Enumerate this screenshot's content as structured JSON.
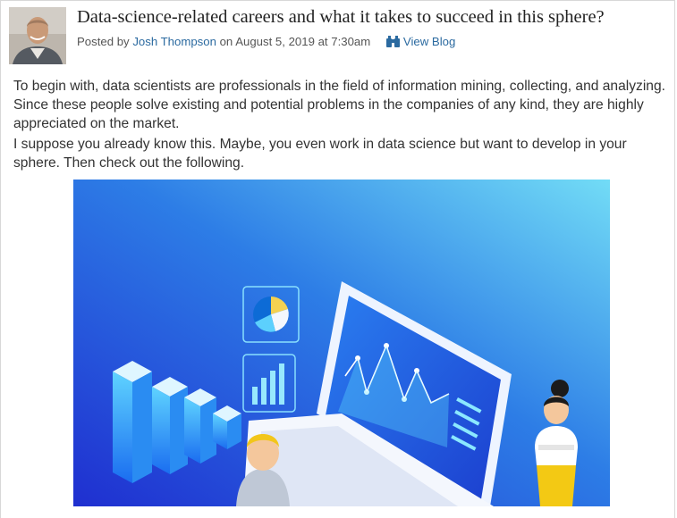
{
  "post": {
    "title": "Data-science-related careers and what it takes to succeed in this sphere?",
    "posted_by_prefix": "Posted by",
    "author": "Josh Thompson",
    "date_text": "on August 5, 2019 at 7:30am",
    "view_blog_label": "View Blog",
    "icons": {
      "view_blog": "binoculars-icon"
    }
  },
  "body": {
    "paragraph1": "To begin with, data scientists are professionals in the field of information mining, collecting, and analyzing. Since these people solve existing and potential problems in the companies of any kind, they are highly appreciated on the market.",
    "paragraph2": "I suppose you already know this. Maybe, you even work in data science but want to develop in your sphere. Then check out the following."
  },
  "colors": {
    "link": "#2b6aa0",
    "hero_top": "#6fd6f5",
    "hero_bottom": "#1f2fd0"
  }
}
